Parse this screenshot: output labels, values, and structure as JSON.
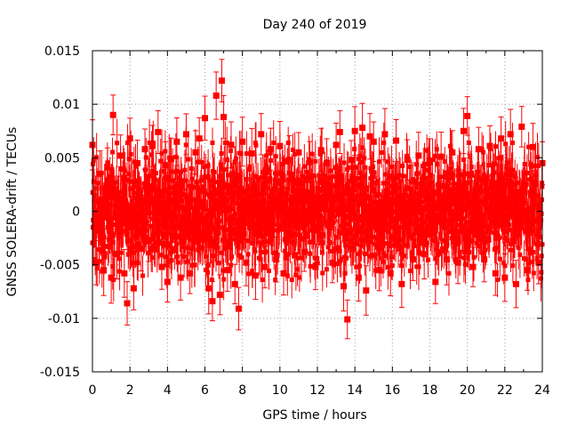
{
  "chart_data": {
    "type": "scatter",
    "title": "Day 240 of 2019",
    "xlabel": "GPS time / hours",
    "ylabel": "GNSS SOLERA-drift / TECUs",
    "xlim": [
      0,
      24
    ],
    "ylim": [
      -0.015,
      0.015
    ],
    "xticks": [
      "0",
      "2",
      "4",
      "6",
      "8",
      "10",
      "12",
      "14",
      "16",
      "18",
      "20",
      "22",
      "24"
    ],
    "yticks": [
      "-0.015",
      "-0.01",
      "-0.005",
      "0",
      "0.005",
      "0.01",
      "0.015"
    ],
    "grid": true,
    "error_bars": true,
    "marker": "square",
    "color": "#ff0000",
    "series": [
      {
        "x": [
          0.0,
          0.2,
          0.4,
          0.6,
          0.8,
          1.0,
          1.1,
          1.3,
          1.5,
          1.7,
          1.85,
          2.0,
          2.2,
          2.4,
          2.6,
          2.8,
          3.0,
          3.2,
          3.5,
          3.7,
          3.9,
          4.0,
          4.2,
          4.5,
          4.7,
          5.0,
          5.2,
          5.5,
          5.7,
          6.0,
          6.2,
          6.4,
          6.6,
          6.8,
          6.9,
          7.0,
          7.2,
          7.4,
          7.6,
          7.8,
          8.0,
          8.2,
          8.5,
          8.7,
          9.0,
          9.2,
          9.5,
          9.8,
          10.0,
          10.2,
          10.5,
          10.8,
          11.0,
          11.3,
          11.6,
          11.9,
          12.2,
          12.5,
          12.8,
          13.0,
          13.2,
          13.4,
          13.6,
          13.8,
          14.0,
          14.2,
          14.4,
          14.6,
          14.8,
          15.0,
          15.3,
          15.6,
          15.9,
          16.2,
          16.5,
          16.8,
          17.1,
          17.4,
          17.7,
          18.0,
          18.3,
          18.6,
          18.9,
          19.2,
          19.5,
          19.8,
          20.0,
          20.3,
          20.6,
          20.9,
          21.2,
          21.5,
          21.8,
          22.0,
          22.3,
          22.6,
          22.9,
          23.2,
          23.5,
          23.8,
          24.0
        ],
        "y": [
          0.0062,
          -0.0048,
          0.0035,
          -0.0055,
          0.0041,
          -0.0062,
          0.009,
          -0.004,
          0.0052,
          -0.0058,
          -0.0086,
          0.0068,
          -0.0072,
          0.0045,
          -0.0035,
          0.0058,
          -0.0028,
          0.0061,
          0.0074,
          -0.0052,
          0.0043,
          -0.0066,
          0.0049,
          0.0065,
          -0.0062,
          0.0072,
          -0.0058,
          0.0055,
          0.0068,
          0.0087,
          -0.0072,
          -0.0084,
          0.0108,
          -0.0078,
          0.0122,
          0.0088,
          -0.0055,
          0.0062,
          -0.0068,
          -0.0091,
          0.0065,
          -0.0048,
          0.0054,
          -0.006,
          0.0072,
          -0.0052,
          0.0058,
          -0.0045,
          0.0061,
          -0.0058,
          0.0048,
          -0.0041,
          0.0055,
          -0.0038,
          0.0046,
          -0.0052,
          0.0057,
          0.0045,
          -0.0048,
          0.0062,
          0.0074,
          -0.007,
          -0.0101,
          0.0048,
          0.0075,
          -0.0062,
          0.0078,
          -0.0074,
          0.007,
          0.0065,
          -0.0055,
          0.0072,
          -0.0058,
          0.0066,
          -0.0068,
          0.0048,
          -0.0045,
          0.0052,
          -0.004,
          0.0046,
          -0.0066,
          0.0051,
          -0.0045,
          0.0055,
          -0.0048,
          0.0075,
          0.0089,
          -0.0052,
          0.0058,
          -0.0045,
          0.0061,
          -0.0058,
          0.0068,
          -0.0062,
          0.0072,
          -0.0068,
          0.0079,
          -0.0055,
          0.006,
          -0.0048,
          0.0045
        ]
      }
    ]
  }
}
